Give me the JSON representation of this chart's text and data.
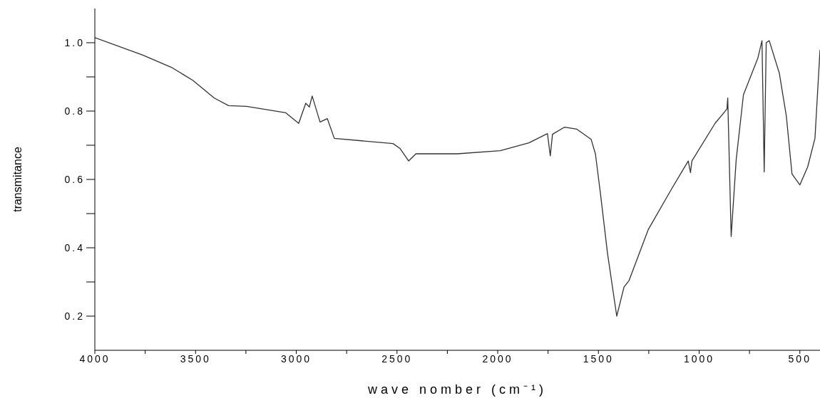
{
  "chart_data": {
    "type": "line",
    "xlabel": "wave nomber (cm⁻¹)",
    "ylabel": "transmitance",
    "xlim": [
      4000,
      400
    ],
    "ylim": [
      0.1,
      1.1
    ],
    "xticks": [
      4000,
      {
        "value": 3750,
        "label": null
      },
      3500,
      {
        "value": 3250,
        "label": null
      },
      3000,
      {
        "value": 2750,
        "label": null
      },
      2500,
      {
        "value": 2250,
        "label": null
      },
      2000,
      {
        "value": 1750,
        "label": null
      },
      1500,
      {
        "value": 1250,
        "label": null
      },
      1000,
      {
        "value": 750,
        "label": null
      },
      500
    ],
    "yticks": [
      0.2,
      {
        "value": 0.3,
        "label": null
      },
      0.4,
      {
        "value": 0.5,
        "label": null
      },
      0.6,
      {
        "value": 0.7,
        "label": null
      },
      0.8,
      {
        "value": 0.9,
        "label": null
      },
      {
        "value": 1,
        "label": "1.0"
      }
    ],
    "grid": false,
    "marker": "none",
    "line_style": "solid",
    "series": [
      {
        "color": "#333333",
        "x": [
          4000,
          3762,
          3620,
          3514,
          3407,
          3336,
          3247,
          3052,
          2988,
          2953,
          2935,
          2921,
          2882,
          2846,
          2811,
          2520,
          2484,
          2442,
          2406,
          2200,
          1987,
          1845,
          1753,
          1739,
          1728,
          1668,
          1607,
          1536,
          1515,
          1490,
          1455,
          1409,
          1373,
          1348,
          1252,
          1135,
          1054,
          1043,
          1036,
          921,
          862,
          858,
          841,
          816,
          780,
          709,
          688,
          677,
          667,
          652,
          602,
          567,
          539,
          500,
          461,
          425,
          400
        ],
        "values": [
          1.015,
          0.964,
          0.928,
          0.89,
          0.838,
          0.816,
          0.814,
          0.795,
          0.764,
          0.823,
          0.812,
          0.844,
          0.768,
          0.778,
          0.72,
          0.705,
          0.69,
          0.654,
          0.675,
          0.675,
          0.684,
          0.707,
          0.734,
          0.669,
          0.732,
          0.753,
          0.747,
          0.717,
          0.675,
          0.559,
          0.384,
          0.2,
          0.285,
          0.304,
          0.454,
          0.574,
          0.654,
          0.62,
          0.654,
          0.764,
          0.806,
          0.838,
          0.433,
          0.658,
          0.848,
          0.954,
          1.006,
          0.622,
          1.0,
          1.006,
          0.911,
          0.785,
          0.616,
          0.584,
          0.637,
          0.72,
          0.979
        ]
      }
    ]
  }
}
